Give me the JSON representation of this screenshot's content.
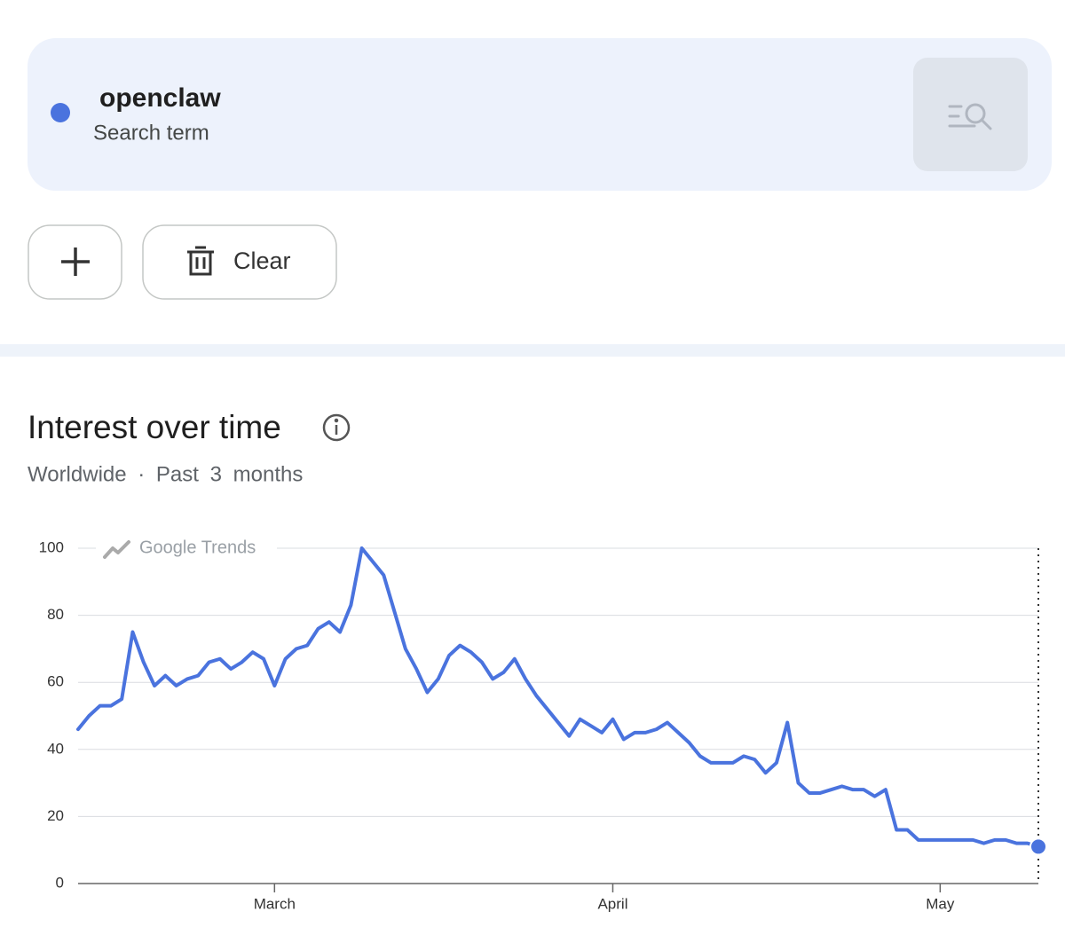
{
  "search": {
    "term": "openclaw",
    "term_type": "Search term"
  },
  "buttons": {
    "clear": "Clear"
  },
  "chart_data": {
    "type": "line",
    "title": "Interest over time",
    "subtitle": "Worldwide · Past 3 months",
    "watermark": "Google Trends",
    "color": "#4a73de",
    "grid": true,
    "ylim": [
      0,
      100
    ],
    "yticks": [
      0,
      20,
      40,
      60,
      80,
      100
    ],
    "categories": [
      null,
      null,
      null,
      null,
      null,
      null,
      null,
      null,
      null,
      null,
      null,
      null,
      null,
      null,
      null,
      null,
      null,
      null,
      "March",
      null,
      null,
      null,
      null,
      null,
      null,
      null,
      null,
      null,
      null,
      null,
      null,
      null,
      null,
      null,
      null,
      null,
      null,
      null,
      null,
      null,
      null,
      null,
      null,
      null,
      null,
      null,
      null,
      null,
      null,
      "April",
      null,
      null,
      null,
      null,
      null,
      null,
      null,
      null,
      null,
      null,
      null,
      null,
      null,
      null,
      null,
      null,
      null,
      null,
      null,
      null,
      null,
      null,
      null,
      null,
      null,
      null,
      null,
      null,
      null,
      "May",
      null,
      null,
      null,
      null,
      null,
      null,
      null,
      null,
      null
    ],
    "values": [
      46,
      50,
      53,
      53,
      55,
      75,
      66,
      59,
      62,
      59,
      61,
      62,
      66,
      67,
      64,
      66,
      69,
      67,
      59,
      67,
      70,
      71,
      76,
      78,
      75,
      83,
      100,
      96,
      92,
      81,
      70,
      64,
      57,
      61,
      68,
      71,
      69,
      66,
      61,
      63,
      67,
      61,
      56,
      52,
      48,
      44,
      49,
      47,
      45,
      49,
      43,
      45,
      45,
      46,
      48,
      45,
      42,
      38,
      36,
      36,
      36,
      38,
      37,
      33,
      36,
      48,
      30,
      27,
      27,
      28,
      29,
      28,
      28,
      26,
      28,
      16,
      16,
      13,
      13,
      13,
      13,
      13,
      13,
      12,
      13,
      13,
      12,
      12,
      11
    ]
  }
}
